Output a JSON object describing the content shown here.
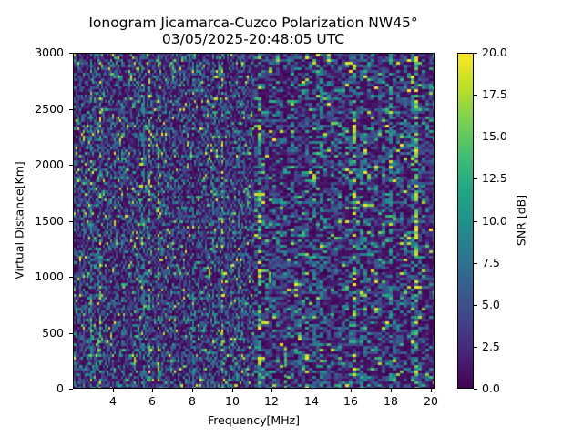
{
  "chart_data": {
    "type": "heatmap",
    "title": "Ionogram Jicamarca-Cuzco Polarization NW45°",
    "subtitle": "03/05/2025-20:48:05 UTC",
    "xlabel": "Frequency[MHz]",
    "ylabel": "Virtual Distance[Km]",
    "xlim": [
      2.0,
      20.2
    ],
    "ylim": [
      0,
      3000
    ],
    "x_ticks": [
      4,
      6,
      8,
      10,
      12,
      14,
      16,
      18,
      20
    ],
    "x_tick_labels": [
      "4",
      "6",
      "8",
      "10",
      "12",
      "14",
      "16",
      "18",
      "20"
    ],
    "y_ticks": [
      0,
      500,
      1000,
      1500,
      2000,
      2500,
      3000
    ],
    "y_tick_labels": [
      "0",
      "500",
      "1000",
      "1500",
      "2000",
      "2500",
      "3000"
    ],
    "colorbar": {
      "label": "SNR [dB]",
      "colormap": "viridis",
      "range": [
        0.0,
        20.0
      ],
      "ticks": [
        0.0,
        2.5,
        5.0,
        7.5,
        10.0,
        12.5,
        15.0,
        17.5,
        20.0
      ],
      "tick_labels": [
        "0.0",
        "2.5",
        "5.0",
        "7.5",
        "10.0",
        "12.5",
        "15.0",
        "17.5",
        "20.0"
      ]
    },
    "grid": false,
    "legend": "none",
    "description": "Noise-dominated SNR map; mostly 0-5 dB with scattered vertical streaks of 10-20 dB, denser enhanced streaks around 9-10 MHz, 12.5 MHz and 14-16 MHz; frequency resolution coarser above ~11 MHz",
    "notable_features": [
      {
        "frequency_mhz": 12.6,
        "distance_km_range": [
          0,
          450
        ],
        "snr_db": 18
      },
      {
        "frequency_mhz": 9.3,
        "distance_km_range": [
          2700,
          3000
        ],
        "snr_db": 17
      },
      {
        "frequency_mhz": 11.8,
        "distance_km_range": [
          950,
          1050
        ],
        "snr_db": 18
      }
    ]
  },
  "title": {
    "line1": "Ionogram Jicamarca-Cuzco Polarization NW45°",
    "line2": "03/05/2025-20:48:05 UTC"
  },
  "axes": {
    "xlabel": "Frequency[MHz]",
    "ylabel": "Virtual Distance[Km]",
    "colorbar_label": "SNR [dB]"
  }
}
